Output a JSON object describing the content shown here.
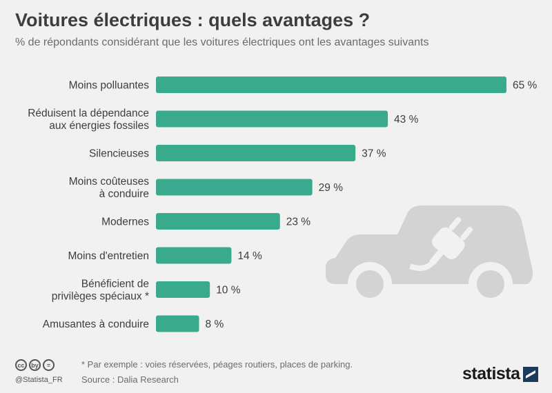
{
  "header": {
    "title": "Voitures électriques : quels avantages ?",
    "subtitle": "% de répondants considérant que les voitures électriques ont les avantages suivants"
  },
  "chart_data": {
    "type": "bar",
    "orientation": "horizontal",
    "title": "Voitures électriques : quels avantages ?",
    "subtitle": "% de répondants considérant que les voitures électriques ont les avantages suivants",
    "categories": [
      [
        "Moins polluantes"
      ],
      [
        "Réduisent la dépendance",
        "aux énergies fossiles"
      ],
      [
        "Silencieuses"
      ],
      [
        "Moins coûteuses",
        "à conduire"
      ],
      [
        "Modernes"
      ],
      [
        "Moins d'entretien"
      ],
      [
        "Bénéficient de",
        "privilèges spéciaux *"
      ],
      [
        "Amusantes à conduire"
      ]
    ],
    "values": [
      65,
      43,
      37,
      29,
      23,
      14,
      10,
      8
    ],
    "value_labels": [
      "65 %",
      "43 %",
      "37 %",
      "29 %",
      "23 %",
      "14 %",
      "10 %",
      "8 %"
    ],
    "xlim": [
      0,
      65
    ],
    "bar_color": "#3aaa8c",
    "grid": false,
    "legend": "none"
  },
  "footer": {
    "cc_icons": [
      "cc",
      "by",
      "="
    ],
    "handle": "@Statista_FR",
    "footnote": "* Par exemple : voies réservées, péages routiers, places de parking.",
    "source": "Source : Dalia Research",
    "brand": "statista"
  },
  "decoration": {
    "icon": "electric-car-plug-icon",
    "color": "#d3d3d3"
  }
}
